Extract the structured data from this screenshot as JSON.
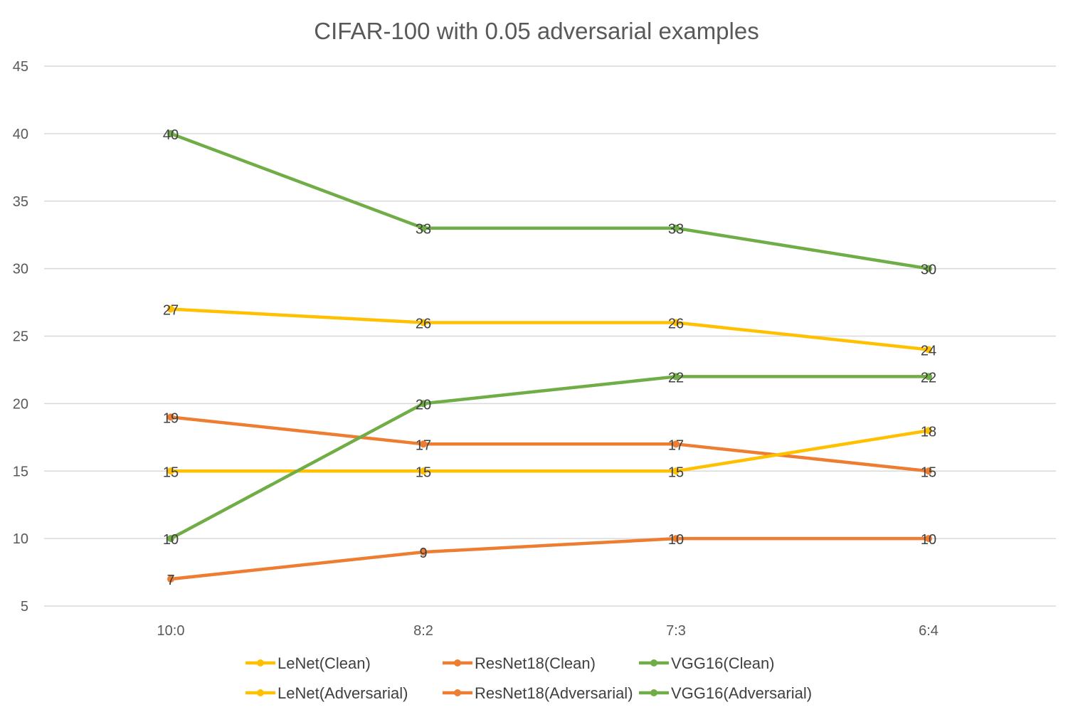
{
  "chart_data": {
    "type": "line",
    "title": "CIFAR-100 with 0.05 adversarial examples",
    "xlabel": "",
    "ylabel": "",
    "categories": [
      "10:0",
      "8:2",
      "7:3",
      "6:4"
    ],
    "ylim": [
      5,
      45
    ],
    "yticks": [
      "5",
      "10",
      "15",
      "20",
      "25",
      "30",
      "35",
      "40",
      "45"
    ],
    "grid": true,
    "legend_position": "bottom",
    "series": [
      {
        "name": "LeNet(Clean)",
        "color": "#FFC000",
        "values": [
          27,
          26,
          26,
          24
        ]
      },
      {
        "name": "ResNet18(Clean)",
        "color": "#ED7D31",
        "values": [
          19,
          17,
          17,
          15
        ]
      },
      {
        "name": "VGG16(Clean)",
        "color": "#70AD47",
        "values": [
          40,
          33,
          33,
          30
        ]
      },
      {
        "name": "LeNet(Adversarial)",
        "color": "#FFC000",
        "values": [
          15,
          15,
          15,
          18
        ]
      },
      {
        "name": "ResNet18(Adversarial)",
        "color": "#ED7D31",
        "values": [
          7,
          9,
          10,
          10
        ]
      },
      {
        "name": "VGG16(Adversarial)",
        "color": "#70AD47",
        "values": [
          10,
          20,
          22,
          22
        ]
      }
    ]
  }
}
